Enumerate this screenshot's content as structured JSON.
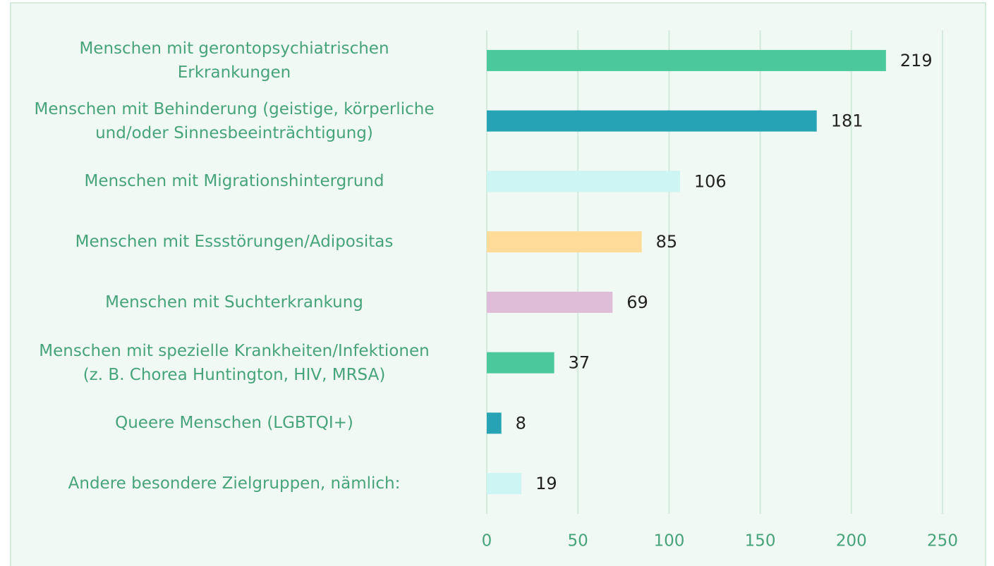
{
  "chart_data": {
    "type": "bar",
    "orientation": "horizontal",
    "categories": [
      "Menschen mit gerontopsychiatrischen\nErkrankungen",
      "Menschen mit Behinderung (geistige, körperliche\nund/oder Sinnesbeeinträchtigung)",
      "Menschen mit Migrationshintergrund",
      "Menschen mit Essstörungen/Adipositas",
      "Menschen mit Suchterkrankung",
      "Menschen mit spezielle Krankheiten/Infektionen\n(z. B. Chorea Huntington, HIV, MRSA)",
      "Queere Menschen (LGBTQI+)",
      "Andere besondere Zielgruppen, nämlich:"
    ],
    "values": [
      219,
      181,
      106,
      85,
      69,
      37,
      8,
      19
    ],
    "colors": [
      "#4bc99c",
      "#26a3b5",
      "#cdf5f3",
      "#fedb99",
      "#dfbcd8",
      "#4bc99c",
      "#26a3b5",
      "#cdf5f3"
    ],
    "xlim": [
      0,
      250
    ],
    "xticks": [
      0,
      50,
      100,
      150,
      200,
      250
    ],
    "grid": true
  }
}
